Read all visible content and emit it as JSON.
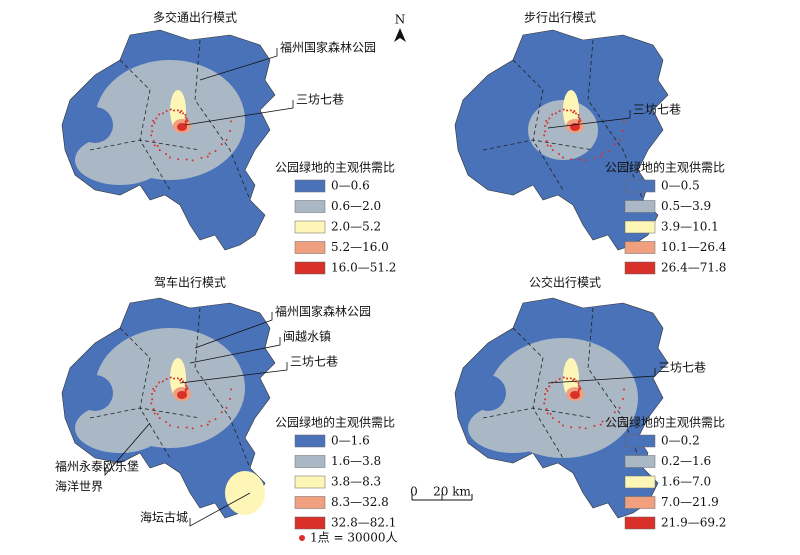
{
  "panels": [
    {
      "title": "多交通出行模式",
      "legend_title": "公园绿地的主观供需比",
      "legend": [
        "0—0.6",
        "0.6—2.0",
        "2.0—5.2",
        "5.2—16.0",
        "16.0—51.2"
      ],
      "annotations": [
        "福州国家森林公园",
        "三坊七巷"
      ]
    },
    {
      "title": "步行出行模式",
      "legend_title": "公园绿地的主观供需比",
      "legend": [
        "0—0.5",
        "0.5—3.9",
        "3.9—10.1",
        "10.1—26.4",
        "26.4—71.8"
      ],
      "annotations": [
        "三坊七巷"
      ]
    },
    {
      "title": "驾车出行模式",
      "legend_title": "公园绿地的主观供需比",
      "legend": [
        "0—1.6",
        "1.6—3.8",
        "3.8—8.3",
        "8.3—32.8",
        "32.8—82.1"
      ],
      "annotations": [
        "福州国家森林公园",
        "闽越水镇",
        "三坊七巷",
        "福州永泰欧乐堡",
        "海洋世界",
        "海坛古城"
      ]
    },
    {
      "title": "公交出行模式",
      "legend_title": "公园绿地的主观供需比",
      "legend": [
        "0—0.2",
        "0.2—1.6",
        "1.6—7.0",
        "7.0—21.9",
        "21.9—69.2"
      ],
      "annotations": [
        "三坊七巷"
      ]
    }
  ],
  "north": "N",
  "scale": {
    "zero": "0",
    "length": "20 km"
  },
  "dot_legend": "1点 = 30000人"
}
